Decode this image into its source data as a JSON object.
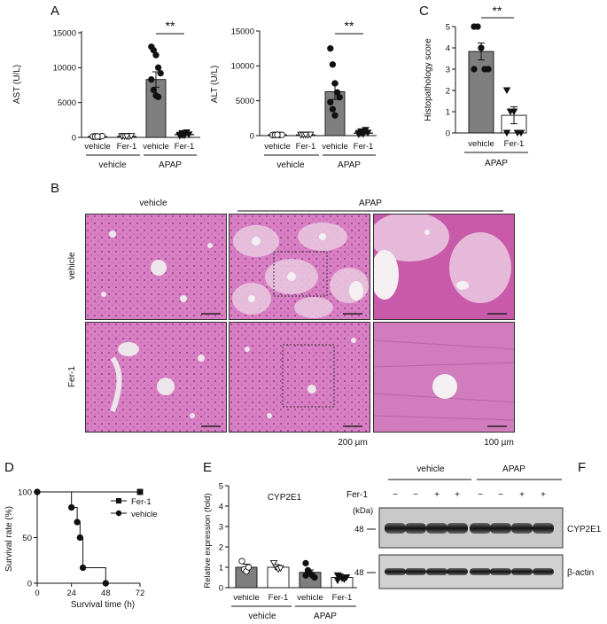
{
  "panels": [
    "A",
    "B",
    "C",
    "D",
    "E",
    "F"
  ],
  "groups": {
    "vehicle": "vehicle",
    "fer1": "Fer-1",
    "apap": "APAP"
  },
  "significance": "**",
  "histology": {
    "row_labels": [
      "vehicle",
      "Fer-1"
    ],
    "col_headers": [
      "vehicle",
      "APAP"
    ],
    "scale_bars": [
      "200 µm",
      "100 µm"
    ]
  },
  "blot": {
    "group_headers": [
      "vehicle",
      "APAP"
    ],
    "row_label": "Fer-1",
    "unit": "(kDa)",
    "lane_marks": [
      "−",
      "−",
      "+",
      "+",
      "−",
      "−",
      "+",
      "+"
    ],
    "mw": [
      "48",
      "48"
    ],
    "bands": [
      "CYP2E1",
      "β-actin"
    ]
  },
  "chart_data": [
    {
      "panel": "A",
      "type": "bar",
      "ylabel": "AST (U/L)",
      "ylim": [
        0,
        15000
      ],
      "yticks": [
        0,
        5000,
        10000,
        15000
      ],
      "categories": [
        "vehicle",
        "Fer-1",
        "vehicle",
        "Fer-1"
      ],
      "group_labels": [
        "vehicle",
        "APAP"
      ],
      "values": [
        120,
        150,
        8300,
        400
      ],
      "errors": [
        40,
        40,
        1100,
        120
      ],
      "points": [
        [
          100,
          150,
          120,
          90,
          180,
          130,
          110,
          140
        ],
        [
          120,
          180,
          150,
          100,
          200,
          160,
          140,
          130
        ],
        [
          13000,
          12500,
          11800,
          10000,
          9200,
          8300,
          6800,
          6000,
          5800
        ],
        [
          200,
          300,
          500,
          700,
          400,
          350,
          600,
          250
        ]
      ],
      "significance": "**"
    },
    {
      "panel": "A",
      "type": "bar",
      "ylabel": "ALT (U/L)",
      "ylim": [
        0,
        15000
      ],
      "yticks": [
        0,
        5000,
        10000,
        15000
      ],
      "categories": [
        "vehicle",
        "Fer-1",
        "vehicle",
        "Fer-1"
      ],
      "group_labels": [
        "vehicle",
        "APAP"
      ],
      "values": [
        100,
        100,
        6300,
        350
      ],
      "errors": [
        30,
        30,
        1100,
        120
      ],
      "points": [
        [
          80,
          100,
          120,
          90,
          110,
          100,
          90,
          120
        ],
        [
          90,
          110,
          100,
          80,
          120,
          100,
          110,
          90
        ],
        [
          12500,
          10200,
          7500,
          6200,
          5500,
          4800,
          3800,
          2900
        ],
        [
          150,
          300,
          500,
          800,
          400,
          350,
          600,
          200
        ]
      ],
      "significance": "**"
    },
    {
      "panel": "C",
      "type": "bar",
      "ylabel": "Histopathology score",
      "ylim": [
        0,
        5
      ],
      "yticks": [
        0,
        1,
        2,
        3,
        4,
        5
      ],
      "categories": [
        "vehicle",
        "Fer-1"
      ],
      "group_labels": [
        "APAP"
      ],
      "values": [
        3.83,
        0.83
      ],
      "errors": [
        0.4,
        0.4
      ],
      "points": [
        [
          5,
          5,
          4,
          3,
          3,
          3
        ],
        [
          2,
          1,
          1,
          0,
          0,
          0
        ]
      ],
      "significance": "**"
    },
    {
      "panel": "D",
      "type": "line",
      "ylabel": "Survival rate (%)",
      "xlabel": "Survival time (h)",
      "xlim": [
        0,
        72
      ],
      "ylim": [
        0,
        100
      ],
      "xticks": [
        0,
        24,
        48,
        72
      ],
      "yticks": [
        0,
        50,
        100
      ],
      "series": [
        {
          "name": "Fer-1",
          "x": [
            0,
            72
          ],
          "y": [
            100,
            100
          ]
        },
        {
          "name": "vehicle",
          "x": [
            0,
            24,
            28,
            30,
            32,
            48
          ],
          "y": [
            100,
            83,
            67,
            50,
            17,
            0
          ]
        }
      ]
    },
    {
      "panel": "E",
      "type": "bar",
      "title": "CYP2E1",
      "ylabel": "Relative expression (fold)",
      "ylim": [
        0,
        5
      ],
      "yticks": [
        0,
        1,
        2,
        3,
        4,
        5
      ],
      "categories": [
        "vehicle",
        "Fer-1",
        "vehicle",
        "Fer-1"
      ],
      "group_labels": [
        "vehicle",
        "APAP"
      ],
      "values": [
        1.0,
        1.0,
        0.75,
        0.5
      ],
      "errors": [
        0.15,
        0.1,
        0.12,
        0.08
      ],
      "points": [
        [
          1.3,
          0.9,
          0.8,
          1.0
        ],
        [
          1.2,
          1.0,
          0.9,
          0.95
        ],
        [
          1.2,
          0.85,
          0.7,
          0.6,
          0.5,
          0.6
        ],
        [
          0.6,
          0.55,
          0.45,
          0.4,
          0.5,
          0.35
        ]
      ]
    }
  ]
}
